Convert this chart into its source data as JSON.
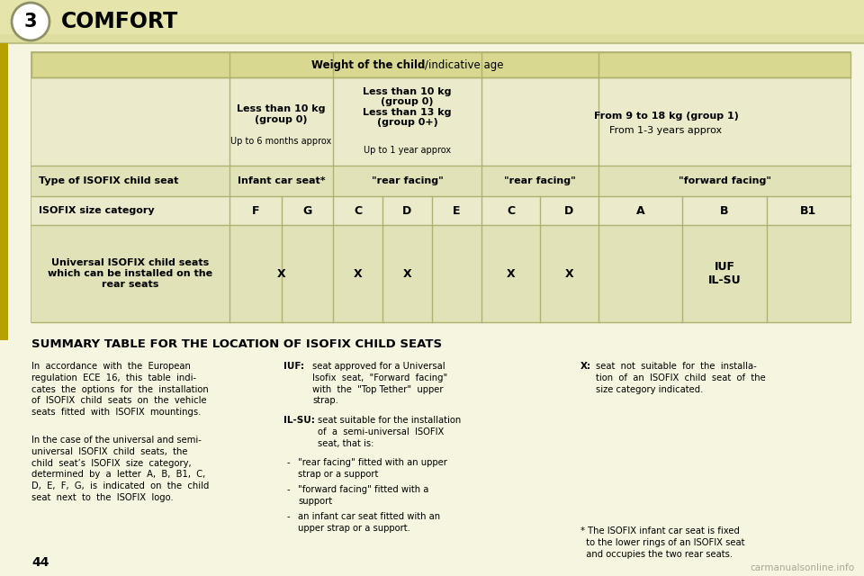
{
  "bg_color": "#e8e8b8",
  "page_bg": "#f5f5e0",
  "header_bg": "#e0e0a8",
  "table_bg": "#e8e8c0",
  "table_border": "#b8b880",
  "title": "COMFORT",
  "chapter_num": "3",
  "weight_header": "Weight of the child",
  "weight_header2": "/indicative age",
  "col1_bold": "Less than 10 kg\n(group 0)",
  "col1_light": "Up to 6 months approx",
  "col2_bold": "Less than 10 kg\n(group 0)\nLess than 13 kg\n(group 0+)",
  "col2_light": "Up to 1 year approx",
  "col3_bold": "From 9 to 18 kg (group 1)",
  "col3_light": "From 1-3 years approx",
  "summary_title": "SUMMARY TABLE FOR THE LOCATION OF ISOFIX CHILD SEATS",
  "page_num": "44",
  "watermark": "carmanualsonline.info"
}
